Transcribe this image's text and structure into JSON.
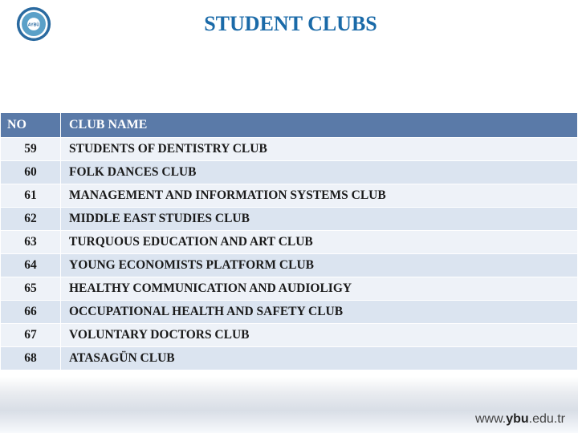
{
  "title": "STUDENT CLUBS",
  "title_color": "#1a6aa8",
  "logo_colors": {
    "outer": "#2a6aa0",
    "inner": "#5aa0c8",
    "text": "#ffffff"
  },
  "table": {
    "header_bg": "#5a7aa8",
    "header_fg": "#ffffff",
    "row_even_bg": "#eef2f8",
    "row_odd_bg": "#dbe4f0",
    "text_color": "#1a1a1a",
    "columns": [
      {
        "key": "no",
        "label": "NO",
        "width": 75,
        "align": "center"
      },
      {
        "key": "name",
        "label": "CLUB NAME",
        "align": "left"
      }
    ],
    "rows": [
      {
        "no": "59",
        "name": "STUDENTS OF DENTISTRY CLUB"
      },
      {
        "no": "60",
        "name": "FOLK DANCES CLUB"
      },
      {
        "no": "61",
        "name": "MANAGEMENT AND INFORMATION SYSTEMS CLUB"
      },
      {
        "no": "62",
        "name": "MIDDLE EAST STUDIES CLUB"
      },
      {
        "no": "63",
        "name": "TURQUOUS EDUCATION AND ART CLUB"
      },
      {
        "no": "64",
        "name": "YOUNG ECONOMISTS PLATFORM CLUB"
      },
      {
        "no": "65",
        "name": "HEALTHY COMMUNICATION AND AUDIOLIGY"
      },
      {
        "no": "66",
        "name": "OCCUPATIONAL HEALTH AND SAFETY CLUB"
      },
      {
        "no": "67",
        "name": "VOLUNTARY DOCTORS CLUB"
      },
      {
        "no": "68",
        "name": "ATASAGÜN CLUB"
      }
    ]
  },
  "footer_url": {
    "prefix": "www.",
    "bold": "ybu",
    "suffix": ".edu.tr"
  }
}
